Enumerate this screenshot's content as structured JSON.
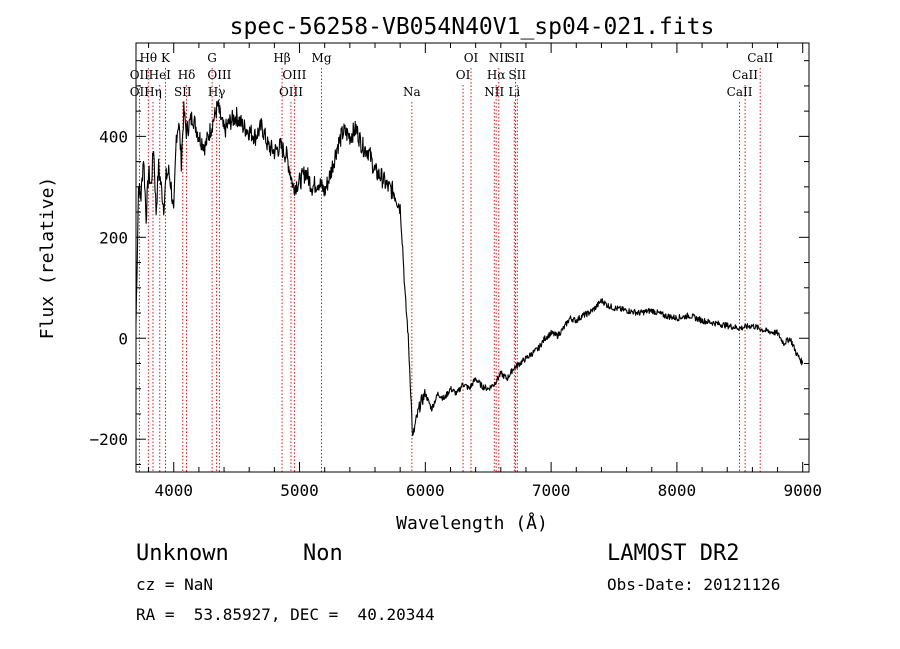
{
  "chart_data": {
    "type": "line",
    "title": "spec-56258-VB054N40V1_sp04-021.fits",
    "xlabel": "Wavelength (Å)",
    "ylabel": "Flux (relative)",
    "xlim": [
      3700,
      9050
    ],
    "ylim": [
      -265,
      585
    ],
    "x_ticks": [
      4000,
      5000,
      6000,
      7000,
      8000,
      9000
    ],
    "y_ticks": [
      -200,
      0,
      200,
      400
    ],
    "grid": false,
    "series": [
      {
        "x": [
          3700,
          3720,
          3740,
          3760,
          3780,
          3800,
          3820,
          3840,
          3860,
          3880,
          3900,
          3920,
          3940,
          3960,
          3980,
          4000,
          4020,
          4040,
          4060,
          4080,
          4100,
          4150,
          4200,
          4250,
          4300,
          4350,
          4400,
          4450,
          4500,
          4550,
          4600,
          4650,
          4700,
          4750,
          4800,
          4850,
          4900,
          4950,
          5000,
          5050,
          5100,
          5150,
          5200,
          5250,
          5300,
          5350,
          5400,
          5450,
          5500,
          5550,
          5600,
          5650,
          5700,
          5750,
          5800,
          5820,
          5840,
          5860,
          5880,
          5900,
          5920,
          5940,
          5960,
          6000,
          6050,
          6100,
          6150,
          6200,
          6250,
          6300,
          6350,
          6400,
          6450,
          6500,
          6550,
          6600,
          6650,
          6700,
          6750,
          6800,
          6850,
          6900,
          6950,
          7000,
          7050,
          7100,
          7150,
          7200,
          7250,
          7300,
          7350,
          7400,
          7450,
          7500,
          7600,
          7700,
          7800,
          7900,
          8000,
          8100,
          8200,
          8300,
          8400,
          8500,
          8600,
          8700,
          8800,
          8850,
          8900,
          8950,
          9000
        ],
        "y": [
          30,
          300,
          280,
          360,
          240,
          330,
          300,
          380,
          250,
          340,
          300,
          260,
          320,
          330,
          300,
          240,
          400,
          430,
          350,
          450,
          410,
          440,
          400,
          380,
          420,
          460,
          410,
          430,
          440,
          420,
          410,
          400,
          420,
          380,
          370,
          380,
          360,
          300,
          310,
          330,
          300,
          310,
          290,
          330,
          380,
          410,
          400,
          415,
          380,
          370,
          330,
          320,
          300,
          290,
          260,
          180,
          80,
          20,
          -80,
          -200,
          -170,
          -150,
          -130,
          -110,
          -140,
          -110,
          -120,
          -100,
          -110,
          -90,
          -100,
          -80,
          -95,
          -100,
          -90,
          -70,
          -80,
          -60,
          -50,
          -40,
          -30,
          -20,
          0,
          10,
          5,
          20,
          40,
          35,
          45,
          50,
          60,
          75,
          65,
          60,
          55,
          50,
          55,
          45,
          40,
          45,
          35,
          30,
          25,
          20,
          25,
          15,
          10,
          -10,
          0,
          -30,
          -50
        ]
      }
    ],
    "annotations": [
      {
        "label": "O II",
        "x": 3727,
        "row": 2
      },
      {
        "label": "O II",
        "x": 3727,
        "row": 3
      },
      {
        "label": "Hθ",
        "x": 3798,
        "row": 1
      },
      {
        "label": "Hη",
        "x": 3835,
        "row": 3
      },
      {
        "label": "He I",
        "x": 3889,
        "row": 2
      },
      {
        "label": "K",
        "x": 3934,
        "row": 1
      },
      {
        "label": "Hδ",
        "x": 4102,
        "row": 2
      },
      {
        "label": "S II",
        "x": 4072,
        "row": 3
      },
      {
        "label": "G",
        "x": 4305,
        "row": 1
      },
      {
        "label": "O III",
        "x": 4363,
        "row": 2
      },
      {
        "label": "Hγ",
        "x": 4341,
        "row": 3
      },
      {
        "label": "Hβ",
        "x": 4861,
        "row": 1
      },
      {
        "label": "O III",
        "x": 4959,
        "row": 2
      },
      {
        "label": "O III",
        "x": 4932,
        "row": 3
      },
      {
        "label": "Mg",
        "x": 5175,
        "row": 1
      },
      {
        "label": "Na",
        "x": 5893,
        "row": 3
      },
      {
        "label": "O I",
        "x": 6363,
        "row": 1
      },
      {
        "label": "O I",
        "x": 6300,
        "row": 2
      },
      {
        "label": "N II",
        "x": 6584,
        "row": 1
      },
      {
        "label": "S II",
        "x": 6717,
        "row": 1
      },
      {
        "label": "Hα",
        "x": 6563,
        "row": 2
      },
      {
        "label": "S II",
        "x": 6731,
        "row": 2
      },
      {
        "label": "N II",
        "x": 6548,
        "row": 3
      },
      {
        "label": "Li",
        "x": 6707,
        "row": 3
      },
      {
        "label": "Ca II",
        "x": 8662,
        "row": 1
      },
      {
        "label": "Ca II",
        "x": 8542,
        "row": 2
      },
      {
        "label": "Ca II",
        "x": 8498,
        "row": 3
      }
    ],
    "line_color": "#000000",
    "marker_color": "#cc0000"
  },
  "info": {
    "classification": "Unknown",
    "subclass": "Non",
    "redshift": "cz = NaN",
    "coords": "RA =  53.85927, DEC =  40.20344",
    "survey": "LAMOST DR2",
    "obs_date": "Obs-Date: 20121126"
  }
}
